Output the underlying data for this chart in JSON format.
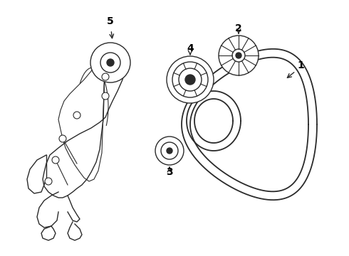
{
  "bg_color": "#ffffff",
  "line_color": "#2a2a2a",
  "line_width": 1.0,
  "label_fontsize": 10,
  "label_fontweight": "bold"
}
